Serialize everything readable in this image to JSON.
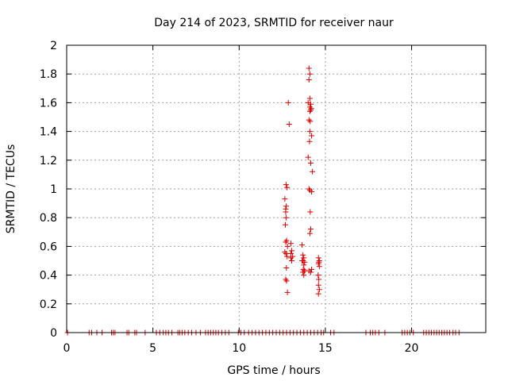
{
  "chart_data": {
    "type": "scatter",
    "title": "Day 214 of 2023, SRMTID for receiver naur",
    "xlabel": "GPS time / hours",
    "ylabel": "SRMTID / TECUs",
    "xlim": [
      0,
      24.3
    ],
    "ylim": [
      0,
      2
    ],
    "xticks": [
      0,
      5,
      10,
      15,
      20
    ],
    "yticks": [
      0,
      0.2,
      0.4,
      0.6,
      0.8,
      1,
      1.2,
      1.4,
      1.6,
      1.8,
      2
    ],
    "ytick_labels": [
      "0",
      "0.2",
      "0.4",
      "0.6",
      "0.8",
      "1",
      "1.2",
      "1.4",
      "1.6",
      "1.8",
      "2"
    ],
    "grid": true,
    "marker": "+",
    "color": "#dd0000",
    "series": [
      {
        "name": "SRMTID",
        "x": [
          0.05,
          1.3,
          1.45,
          1.75,
          2.05,
          2.6,
          2.7,
          2.8,
          3.5,
          3.6,
          3.95,
          4.05,
          4.55,
          5.2,
          5.4,
          5.6,
          5.75,
          5.9,
          6.1,
          6.45,
          6.55,
          6.7,
          6.85,
          7.05,
          7.25,
          7.5,
          7.75,
          8.05,
          8.2,
          8.35,
          8.5,
          8.65,
          8.8,
          9.0,
          9.2,
          9.4,
          9.95,
          10.1,
          10.3,
          10.55,
          10.75,
          10.95,
          11.15,
          11.35,
          11.55,
          11.75,
          11.95,
          12.15,
          12.35,
          12.55,
          12.75,
          12.95,
          13.15,
          13.35,
          13.55,
          13.75,
          13.95,
          14.15,
          14.35,
          14.55,
          14.75,
          14.9,
          15.3,
          15.5,
          17.35,
          17.6,
          17.75,
          17.9,
          18.1,
          18.45,
          19.45,
          19.6,
          19.75,
          19.9,
          20.1,
          20.7,
          20.85,
          21.0,
          21.15,
          21.3,
          21.45,
          21.6,
          21.75,
          21.9,
          22.05,
          22.2,
          22.4,
          22.55,
          22.75,
          12.65,
          12.7,
          12.72,
          12.68,
          12.75,
          12.7,
          12.8,
          12.65,
          12.72,
          12.74,
          12.7,
          12.75,
          12.8,
          12.72,
          12.78,
          12.7,
          12.73,
          12.85,
          12.9,
          12.78,
          13.0,
          13.05,
          13.0,
          13.1,
          13.05,
          13.0,
          13.65,
          13.7,
          13.75,
          13.7,
          13.8,
          13.75,
          13.65,
          13.72,
          13.78,
          13.7,
          13.8,
          13.75,
          14.05,
          14.1,
          14.05,
          14.1,
          14.0,
          14.1,
          14.15,
          14.05,
          14.12,
          14.1,
          14.2,
          14.08,
          14.0,
          14.15,
          14.05,
          14.1,
          14.2,
          14.25,
          14.12,
          14.15,
          14.1,
          14.2,
          14.05,
          14.15,
          14.18,
          14.1,
          14.15,
          14.6,
          14.65,
          14.6,
          14.65,
          14.58,
          14.62,
          14.6,
          14.65,
          14.6,
          14.62
        ],
        "y": [
          0,
          0,
          0,
          0,
          0,
          0,
          0,
          0,
          0,
          0,
          0,
          0,
          0,
          0,
          0,
          0,
          0,
          0,
          0,
          0,
          0,
          0,
          0,
          0,
          0,
          0,
          0,
          0,
          0,
          0,
          0,
          0,
          0,
          0,
          0,
          0,
          0,
          0,
          0,
          0,
          0,
          0,
          0,
          0,
          0,
          0,
          0,
          0,
          0,
          0,
          0,
          0,
          0,
          0,
          0,
          0,
          0,
          0,
          0,
          0,
          0,
          0,
          0,
          0,
          0,
          0,
          0,
          0,
          0,
          0,
          0,
          0,
          0,
          0,
          0,
          0,
          0,
          0,
          0,
          0,
          0,
          0,
          0,
          0,
          0,
          0,
          0,
          0,
          0,
          0.93,
          0.86,
          0.8,
          0.75,
          0.64,
          0.63,
          0.6,
          0.56,
          0.55,
          0.45,
          0.37,
          0.36,
          0.28,
          1.03,
          1.01,
          0.84,
          0.88,
          1.6,
          1.45,
          0.53,
          0.62,
          0.57,
          0.55,
          0.53,
          0.5,
          0.52,
          0.61,
          0.54,
          0.52,
          0.5,
          0.49,
          0.47,
          0.5,
          0.44,
          0.43,
          0.42,
          0.43,
          0.4,
          1.84,
          1.8,
          1.76,
          1.63,
          1.6,
          1.57,
          1.55,
          1.48,
          1.47,
          1.4,
          1.37,
          1.33,
          1.22,
          1.18,
          1.0,
          0.99,
          0.98,
          1.12,
          0.84,
          0.72,
          0.69,
          0.44,
          0.43,
          1.59,
          1.56,
          1.54,
          0.42,
          0.52,
          0.5,
          0.48,
          0.46,
          0.4,
          0.37,
          0.33,
          0.3,
          0.27,
          0.49
        ]
      }
    ]
  }
}
